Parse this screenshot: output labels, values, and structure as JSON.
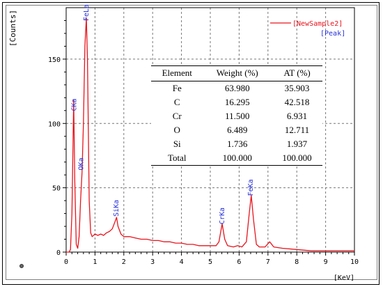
{
  "chart_data": {
    "type": "line",
    "ylabel": "[Counts]",
    "xlabel": "[KeV]",
    "xlim": [
      0,
      10
    ],
    "ylim": [
      0,
      190
    ],
    "x_ticks": [
      "0",
      "1",
      "2",
      "3",
      "4",
      "5",
      "6",
      "7",
      "8",
      "9",
      "10"
    ],
    "y_ticks": [
      "0",
      "50",
      "100",
      "150"
    ],
    "grid": true,
    "legend_placement": "top-right",
    "series": [
      {
        "name": "[NewSample2]",
        "color": "#e8141c"
      }
    ],
    "legend_peak": "[Peak]",
    "peak_color": "#2530d8",
    "peaks": [
      {
        "label": "CKa",
        "x": 0.277,
        "y": 108
      },
      {
        "label": "OKa",
        "x": 0.525,
        "y": 62
      },
      {
        "label": "FeLa",
        "x": 0.705,
        "y": 178
      },
      {
        "label": "SiKa",
        "x": 1.74,
        "y": 26
      },
      {
        "label": "CrKa",
        "x": 5.41,
        "y": 20
      },
      {
        "label": "FeKa",
        "x": 6.4,
        "y": 42
      }
    ],
    "spectrum": [
      [
        0.0,
        0
      ],
      [
        0.1,
        0
      ],
      [
        0.15,
        2
      ],
      [
        0.2,
        30
      ],
      [
        0.26,
        118
      ],
      [
        0.3,
        55
      ],
      [
        0.35,
        6
      ],
      [
        0.4,
        3
      ],
      [
        0.45,
        12
      ],
      [
        0.5,
        40
      ],
      [
        0.55,
        62
      ],
      [
        0.6,
        100
      ],
      [
        0.65,
        160
      ],
      [
        0.7,
        182
      ],
      [
        0.74,
        150
      ],
      [
        0.8,
        40
      ],
      [
        0.85,
        15
      ],
      [
        0.9,
        12
      ],
      [
        1.0,
        14
      ],
      [
        1.1,
        13
      ],
      [
        1.2,
        14
      ],
      [
        1.3,
        13
      ],
      [
        1.4,
        15
      ],
      [
        1.5,
        16
      ],
      [
        1.6,
        18
      ],
      [
        1.7,
        24
      ],
      [
        1.75,
        27
      ],
      [
        1.8,
        20
      ],
      [
        1.9,
        14
      ],
      [
        2.0,
        12
      ],
      [
        2.2,
        12
      ],
      [
        2.4,
        11
      ],
      [
        2.6,
        10
      ],
      [
        2.8,
        10
      ],
      [
        3.0,
        9
      ],
      [
        3.2,
        9
      ],
      [
        3.4,
        8
      ],
      [
        3.6,
        8
      ],
      [
        3.8,
        7
      ],
      [
        4.0,
        7
      ],
      [
        4.2,
        6
      ],
      [
        4.4,
        6
      ],
      [
        4.6,
        5
      ],
      [
        4.8,
        5
      ],
      [
        5.0,
        5
      ],
      [
        5.2,
        5
      ],
      [
        5.3,
        8
      ],
      [
        5.41,
        22
      ],
      [
        5.5,
        10
      ],
      [
        5.6,
        5
      ],
      [
        5.8,
        4
      ],
      [
        5.95,
        5
      ],
      [
        6.1,
        4
      ],
      [
        6.25,
        8
      ],
      [
        6.35,
        30
      ],
      [
        6.42,
        44
      ],
      [
        6.5,
        25
      ],
      [
        6.6,
        6
      ],
      [
        6.7,
        4
      ],
      [
        6.9,
        4
      ],
      [
        7.06,
        8
      ],
      [
        7.2,
        4
      ],
      [
        7.5,
        3
      ],
      [
        8.0,
        2
      ],
      [
        8.5,
        1
      ],
      [
        9.0,
        1
      ],
      [
        9.5,
        1
      ],
      [
        10.0,
        1
      ]
    ],
    "table": {
      "headers": [
        "Element",
        "Weight (%)",
        "AT (%)"
      ],
      "rows": [
        [
          "Fe",
          "63.980",
          "35.903"
        ],
        [
          "C",
          "16.295",
          "42.518"
        ],
        [
          "Cr",
          "11.500",
          "6.931"
        ],
        [
          "O",
          "6.489",
          "12.711"
        ],
        [
          "Si",
          "1.736",
          "1.937"
        ],
        [
          "Total",
          "100.000",
          "100.000"
        ]
      ]
    }
  }
}
